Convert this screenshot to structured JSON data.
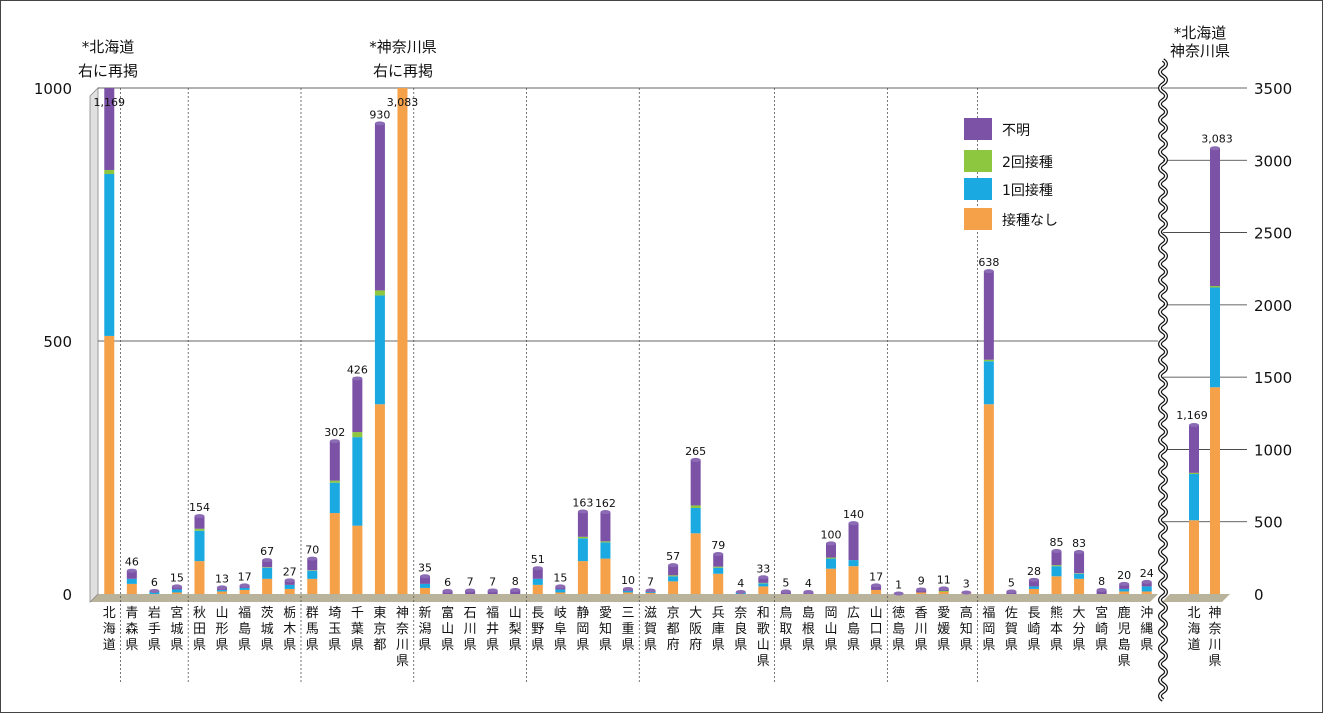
{
  "chart_data": {
    "type": "bar",
    "stacked": true,
    "ylim": [
      0,
      1000
    ],
    "yticks": [
      "0",
      "500",
      "1000"
    ],
    "right_axis": {
      "ylim": [
        0,
        3500
      ],
      "yticks": [
        "0",
        "500",
        "1000",
        "1500",
        "2000",
        "2500",
        "3000",
        "3500"
      ]
    },
    "notes": {
      "hokkaido": [
        "*北海道",
        "右に再掲"
      ],
      "kanagawa": [
        "*神奈川県",
        "右に再掲"
      ],
      "right_header": [
        "*北海道",
        "神奈川県"
      ]
    },
    "series_order": [
      "接種なし",
      "1回接種",
      "2回接種",
      "不明"
    ],
    "legend": [
      {
        "label": "不明",
        "color": "#7b52a6"
      },
      {
        "label": "2回接種",
        "color": "#8dc63f"
      },
      {
        "label": "1回接種",
        "color": "#1ba9e1"
      },
      {
        "label": "接種なし",
        "color": "#f5a14a"
      }
    ],
    "categories": [
      {
        "name": "北海道",
        "total": "1,169",
        "none": 510,
        "one": 320,
        "two": 8,
        "unknown": 331,
        "clipped": true
      },
      {
        "name": "青森県",
        "total": "46",
        "none": 20,
        "one": 10,
        "two": 0,
        "unknown": 16
      },
      {
        "name": "岩手県",
        "total": "6",
        "none": 0,
        "one": 6,
        "two": 0,
        "unknown": 0
      },
      {
        "name": "宮城県",
        "total": "15",
        "none": 3,
        "one": 6,
        "two": 0,
        "unknown": 6
      },
      {
        "name": "秋田県",
        "total": "154",
        "none": 65,
        "one": 60,
        "two": 4,
        "unknown": 25
      },
      {
        "name": "山形県",
        "total": "13",
        "none": 5,
        "one": 3,
        "two": 0,
        "unknown": 5
      },
      {
        "name": "福島県",
        "total": "17",
        "none": 8,
        "one": 4,
        "two": 0,
        "unknown": 5
      },
      {
        "name": "茨城県",
        "total": "67",
        "none": 30,
        "one": 22,
        "two": 1,
        "unknown": 14
      },
      {
        "name": "栃木県",
        "total": "27",
        "none": 10,
        "one": 8,
        "two": 0,
        "unknown": 9
      },
      {
        "name": "群馬県",
        "total": "70",
        "none": 30,
        "one": 16,
        "two": 1,
        "unknown": 23
      },
      {
        "name": "埼玉県",
        "total": "302",
        "none": 160,
        "one": 60,
        "two": 4,
        "unknown": 78
      },
      {
        "name": "千葉県",
        "total": "426",
        "none": 135,
        "one": 175,
        "two": 10,
        "unknown": 106
      },
      {
        "name": "東京都",
        "total": "930",
        "none": 375,
        "one": 215,
        "two": 10,
        "unknown": 330
      },
      {
        "name": "神奈川県",
        "total": "3,083",
        "none": 1430,
        "one": 690,
        "two": 10,
        "unknown": 953,
        "clipped": true
      },
      {
        "name": "新潟県",
        "total": "35",
        "none": 12,
        "one": 8,
        "two": 0,
        "unknown": 15
      },
      {
        "name": "富山県",
        "total": "6",
        "none": 0,
        "one": 0,
        "two": 0,
        "unknown": 6
      },
      {
        "name": "石川県",
        "total": "7",
        "none": 0,
        "one": 0,
        "two": 0,
        "unknown": 7
      },
      {
        "name": "福井県",
        "total": "7",
        "none": 0,
        "one": 0,
        "two": 0,
        "unknown": 7
      },
      {
        "name": "山梨県",
        "total": "8",
        "none": 0,
        "one": 0,
        "two": 0,
        "unknown": 8
      },
      {
        "name": "長野県",
        "total": "51",
        "none": 18,
        "one": 12,
        "two": 0,
        "unknown": 21
      },
      {
        "name": "岐阜県",
        "total": "15",
        "none": 3,
        "one": 6,
        "two": 0,
        "unknown": 6
      },
      {
        "name": "静岡県",
        "total": "163",
        "none": 65,
        "one": 45,
        "two": 3,
        "unknown": 50
      },
      {
        "name": "愛知県",
        "total": "162",
        "none": 70,
        "one": 32,
        "two": 2,
        "unknown": 58
      },
      {
        "name": "三重県",
        "total": "10",
        "none": 3,
        "one": 3,
        "two": 0,
        "unknown": 4
      },
      {
        "name": "滋賀県",
        "total": "7",
        "none": 2,
        "one": 2,
        "two": 0,
        "unknown": 3
      },
      {
        "name": "京都府",
        "total": "57",
        "none": 25,
        "one": 10,
        "two": 2,
        "unknown": 20
      },
      {
        "name": "大阪府",
        "total": "265",
        "none": 120,
        "one": 50,
        "two": 5,
        "unknown": 90
      },
      {
        "name": "兵庫県",
        "total": "79",
        "none": 40,
        "one": 12,
        "two": 2,
        "unknown": 25
      },
      {
        "name": "奈良県",
        "total": "4",
        "none": 0,
        "one": 4,
        "two": 0,
        "unknown": 0
      },
      {
        "name": "和歌山県",
        "total": "33",
        "none": 15,
        "one": 6,
        "two": 1,
        "unknown": 11
      },
      {
        "name": "鳥取県",
        "total": "5",
        "none": 0,
        "one": 0,
        "two": 0,
        "unknown": 5
      },
      {
        "name": "島根県",
        "total": "4",
        "none": 0,
        "one": 0,
        "two": 0,
        "unknown": 4
      },
      {
        "name": "岡山県",
        "total": "100",
        "none": 50,
        "one": 20,
        "two": 2,
        "unknown": 28
      },
      {
        "name": "広島県",
        "total": "140",
        "none": 55,
        "one": 12,
        "two": 0,
        "unknown": 73
      },
      {
        "name": "山口県",
        "total": "17",
        "none": 8,
        "one": 0,
        "two": 0,
        "unknown": 9
      },
      {
        "name": "徳島県",
        "total": "1",
        "none": 1,
        "one": 0,
        "two": 0,
        "unknown": 0
      },
      {
        "name": "香川県",
        "total": "9",
        "none": 3,
        "one": 0,
        "two": 0,
        "unknown": 6
      },
      {
        "name": "愛媛県",
        "total": "11",
        "none": 4,
        "one": 0,
        "two": 2,
        "unknown": 5
      },
      {
        "name": "高知県",
        "total": "3",
        "none": 3,
        "one": 0,
        "two": 0,
        "unknown": 0
      },
      {
        "name": "福岡県",
        "total": "638",
        "none": 375,
        "one": 85,
        "two": 3,
        "unknown": 175
      },
      {
        "name": "佐賀県",
        "total": "5",
        "none": 0,
        "one": 0,
        "two": 0,
        "unknown": 5
      },
      {
        "name": "長崎県",
        "total": "28",
        "none": 10,
        "one": 5,
        "two": 0,
        "unknown": 13
      },
      {
        "name": "熊本県",
        "total": "85",
        "none": 35,
        "one": 20,
        "two": 2,
        "unknown": 28
      },
      {
        "name": "大分県",
        "total": "83",
        "none": 30,
        "one": 10,
        "two": 1,
        "unknown": 42
      },
      {
        "name": "宮崎県",
        "total": "8",
        "none": 0,
        "one": 0,
        "two": 0,
        "unknown": 8
      },
      {
        "name": "鹿児島県",
        "total": "20",
        "none": 5,
        "one": 5,
        "two": 0,
        "unknown": 10
      },
      {
        "name": "沖縄県",
        "total": "24",
        "none": 5,
        "one": 10,
        "two": 0,
        "unknown": 9
      }
    ],
    "group_dividers_after": [
      "北海道",
      "宮城県",
      "栃木県",
      "神奈川県",
      "山梨県",
      "三重県",
      "和歌山県",
      "山口県",
      "高知県",
      "沖縄県"
    ],
    "right_categories": [
      {
        "name": "北海道",
        "total": "1,169",
        "none": 510,
        "one": 320,
        "two": 8,
        "unknown": 331
      },
      {
        "name": "神奈川県",
        "total": "3,083",
        "none": 1430,
        "one": 690,
        "two": 10,
        "unknown": 953
      }
    ]
  }
}
